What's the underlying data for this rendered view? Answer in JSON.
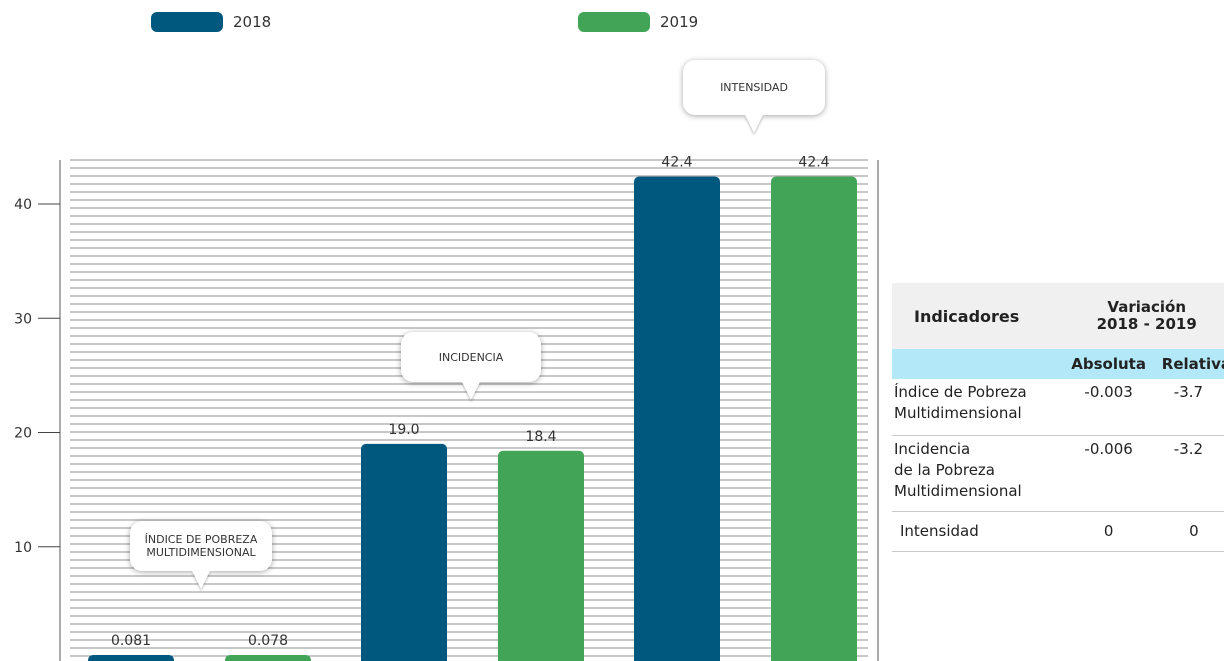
{
  "chart_data": {
    "type": "bar",
    "legend": [
      {
        "label": "2018",
        "color": "#00587f"
      },
      {
        "label": "2019",
        "color": "#42a456"
      }
    ],
    "groups": [
      {
        "callout": "ÍNDICE DE POBREZA MULTIDIMENSIONAL",
        "values": [
          0.081,
          0.078
        ],
        "labels": [
          "0.081",
          "0.078"
        ]
      },
      {
        "callout": "INCIDENCIA",
        "values": [
          19.0,
          18.4
        ],
        "labels": [
          "19.0",
          "18.4"
        ]
      },
      {
        "callout": "INTENSIDAD",
        "values": [
          42.4,
          42.4
        ],
        "labels": [
          "42.4",
          "42.4"
        ]
      }
    ],
    "series": [
      {
        "name": "2018",
        "values": [
          0.081,
          19.0,
          42.4
        ]
      },
      {
        "name": "2019",
        "values": [
          0.078,
          18.4,
          42.4
        ]
      }
    ],
    "yticks": [
      10,
      20,
      30,
      40
    ],
    "ylim": [
      0,
      44
    ],
    "grid": true
  },
  "table": {
    "header_indicador": "Indicadores",
    "header_variacion": "Variación",
    "header_periodo": "2018 - 2019",
    "sub_absoluta": "Absoluta",
    "sub_relativa": "Relativa",
    "rows": [
      {
        "lines": [
          "Índice de Pobreza",
          "Multidimensional"
        ],
        "absoluta": "-0.003",
        "relativa": "-3.7"
      },
      {
        "lines": [
          "Incidencia",
          "de la Pobreza",
          "Multidimensional"
        ],
        "absoluta": "-0.006",
        "relativa": "-3.2"
      },
      {
        "lines": [
          "Intensidad"
        ],
        "absoluta": "0",
        "relativa": "0"
      }
    ]
  }
}
